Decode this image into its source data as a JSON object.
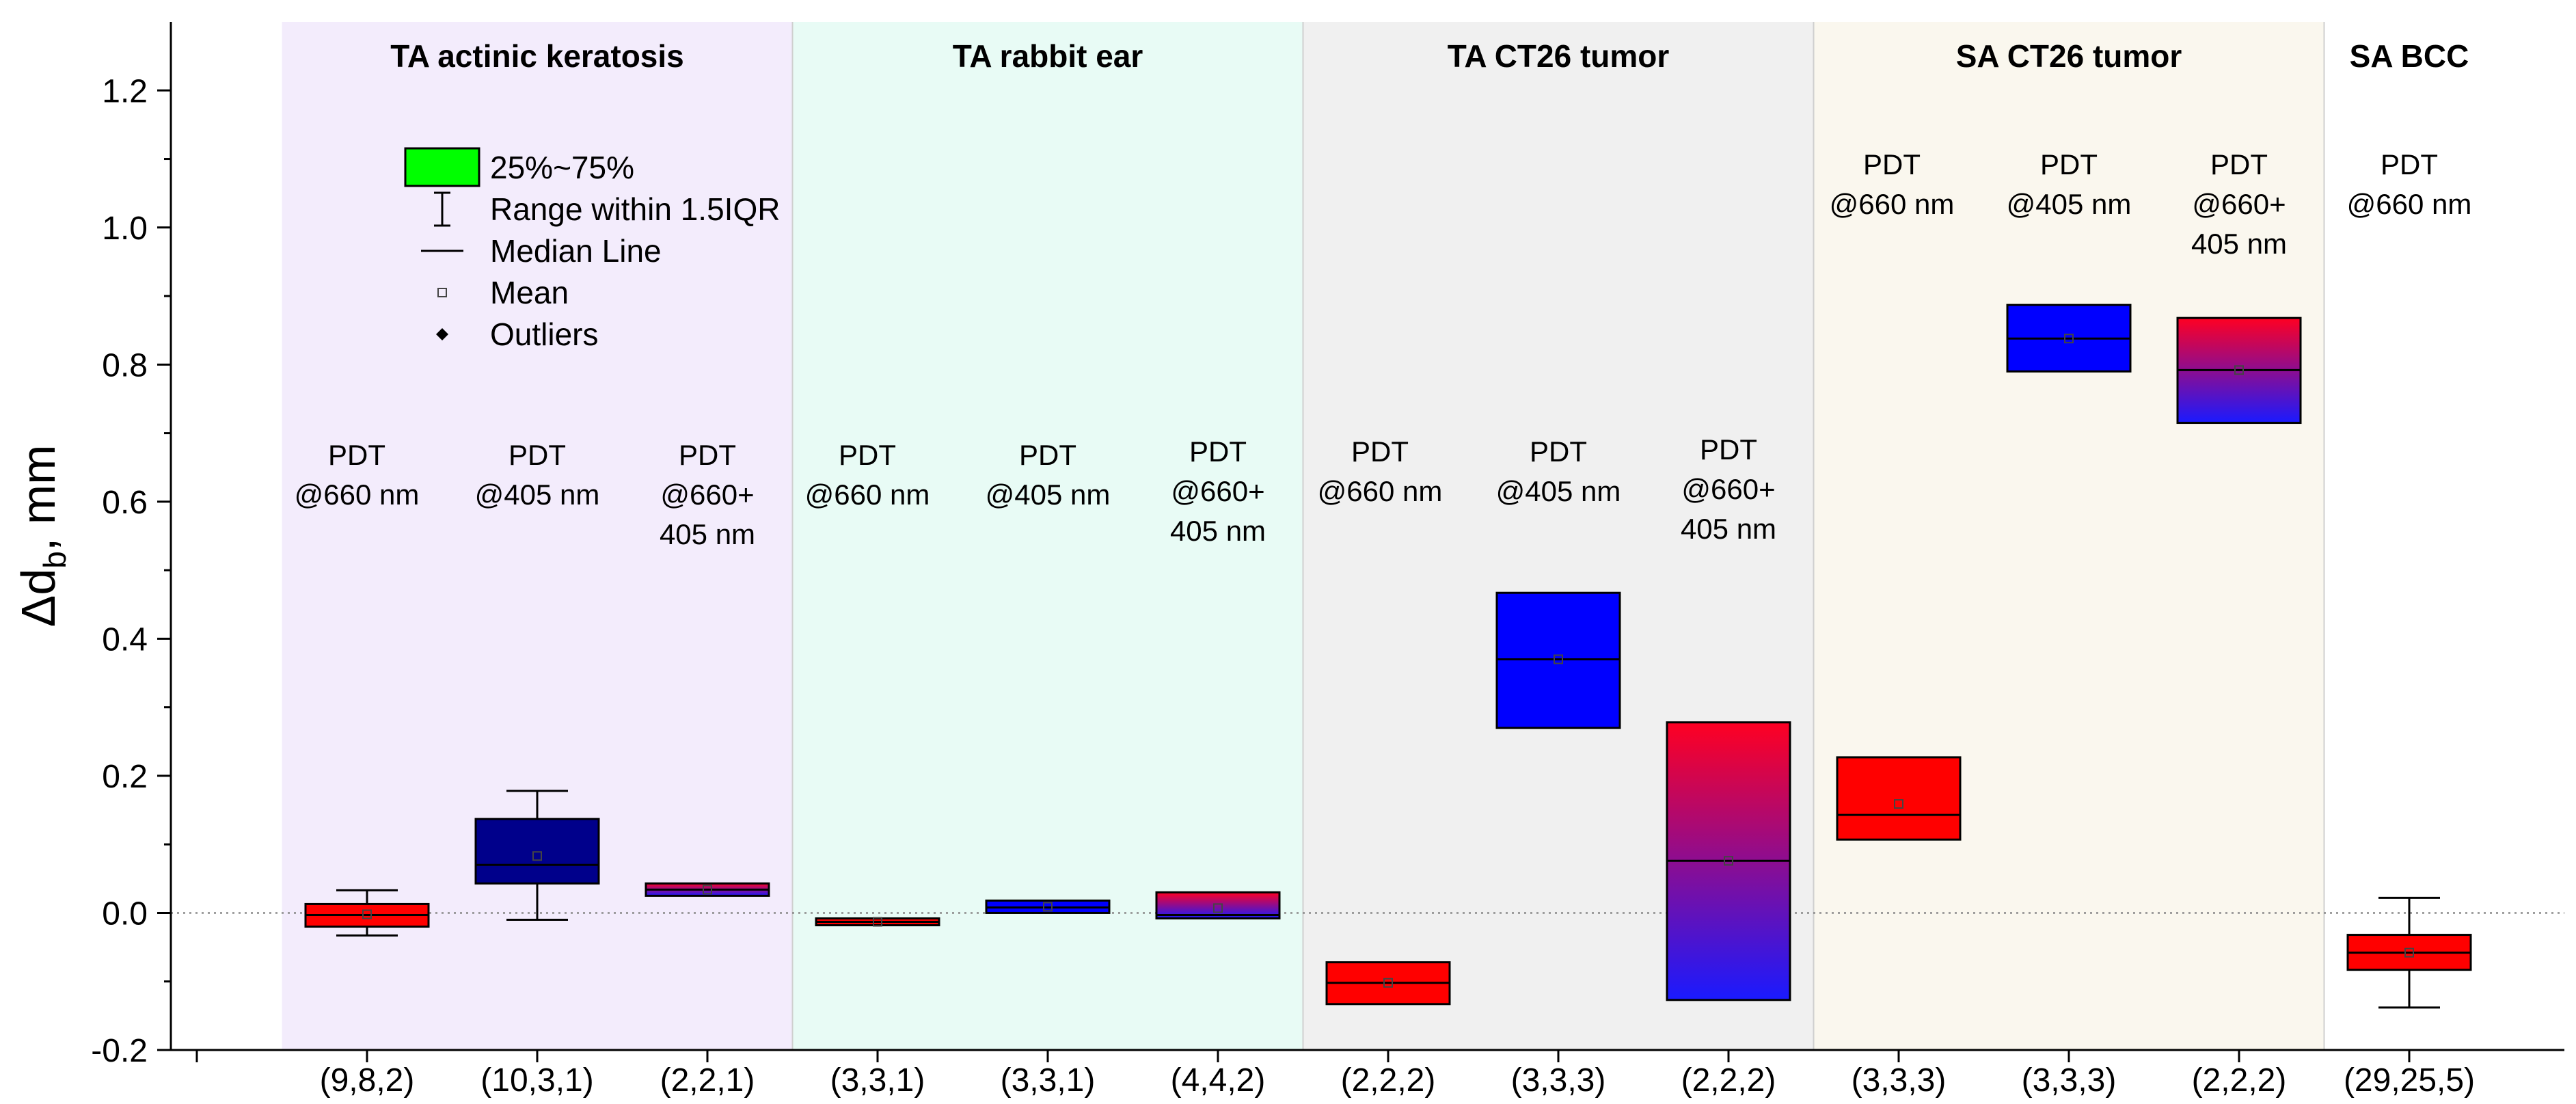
{
  "chart_data": {
    "type": "box",
    "ylabel": "Δd_b, mm",
    "ylabel_main": "Δd",
    "ylabel_sub": "b",
    "ylabel_unit": ", mm",
    "ylim": [
      -0.2,
      1.3
    ],
    "yticks": [
      -0.2,
      0.0,
      0.2,
      0.4,
      0.6,
      0.8,
      1.0,
      1.2
    ],
    "ytick_labels": [
      "-0.2",
      "0.0",
      "0.2",
      "0.4",
      "0.6",
      "0.8",
      "1.0",
      "1.2"
    ],
    "reference_line": 0.0,
    "regions": [
      {
        "title": "TA actinic keratosis",
        "color": "#f3ecfc",
        "start": 0.5,
        "end": 3.5
      },
      {
        "title": "TA rabbit ear",
        "color": "#e8fbf5",
        "start": 3.5,
        "end": 6.5
      },
      {
        "title": "TA CT26 tumor",
        "color": "#f0f0f0",
        "start": 6.5,
        "end": 9.5
      },
      {
        "title": "SA CT26 tumor",
        "color": "#faf7ee",
        "start": 9.5,
        "end": 12.5
      },
      {
        "title": "SA BCC",
        "color": "#ffffff",
        "start": 12.5,
        "end": 13.5
      }
    ],
    "groups": [
      {
        "pos": 1,
        "category": "(9,8,2)",
        "treatment": [
          "PDT",
          "@660 nm"
        ],
        "fill": "red",
        "q1": -0.02,
        "median": -0.003,
        "q3": 0.013,
        "mean": -0.002,
        "whisker_low": -0.033,
        "whisker_high": 0.033
      },
      {
        "pos": 2,
        "category": "(10,3,1)",
        "treatment": [
          "PDT",
          "@405 nm"
        ],
        "fill": "navy",
        "q1": 0.043,
        "median": 0.07,
        "q3": 0.137,
        "mean": 0.083,
        "whisker_low": -0.01,
        "whisker_high": 0.178
      },
      {
        "pos": 3,
        "category": "(2,2,1)",
        "treatment": [
          "PDT",
          "@660+",
          "405 nm"
        ],
        "fill": "gradient",
        "q1": 0.025,
        "median": 0.034,
        "q3": 0.043,
        "mean": 0.034,
        "whisker_low": null,
        "whisker_high": null
      },
      {
        "pos": 4,
        "category": "(3,3,1)",
        "treatment": [
          "PDT",
          "@660 nm"
        ],
        "fill": "red",
        "q1": -0.018,
        "median": -0.013,
        "q3": -0.008,
        "mean": -0.013,
        "whisker_low": null,
        "whisker_high": null
      },
      {
        "pos": 5,
        "category": "(3,3,1)",
        "treatment": [
          "PDT",
          "@405 nm"
        ],
        "fill": "blue",
        "q1": 0.0,
        "median": 0.008,
        "q3": 0.018,
        "mean": 0.009,
        "whisker_low": null,
        "whisker_high": null
      },
      {
        "pos": 6,
        "category": "(4,4,2)",
        "treatment": [
          "PDT",
          "@660+",
          "405 nm"
        ],
        "fill": "gradient",
        "q1": -0.008,
        "median": -0.003,
        "q3": 0.03,
        "mean": 0.007,
        "whisker_low": null,
        "whisker_high": null
      },
      {
        "pos": 7,
        "category": "(2,2,2)",
        "treatment": [
          "PDT",
          "@660 nm"
        ],
        "fill": "red",
        "q1": -0.133,
        "median": -0.102,
        "q3": -0.072,
        "mean": -0.102,
        "whisker_low": null,
        "whisker_high": null
      },
      {
        "pos": 8,
        "category": "(3,3,3)",
        "treatment": [
          "PDT",
          "@405 nm"
        ],
        "fill": "blue",
        "q1": 0.27,
        "median": 0.37,
        "q3": 0.467,
        "mean": 0.37,
        "whisker_low": null,
        "whisker_high": null
      },
      {
        "pos": 9,
        "category": "(2,2,2)",
        "treatment": [
          "PDT",
          "@660+",
          "405 nm"
        ],
        "fill": "gradient",
        "q1": -0.127,
        "median": 0.076,
        "q3": 0.278,
        "mean": 0.076,
        "whisker_low": null,
        "whisker_high": null
      },
      {
        "pos": 10,
        "category": "(3,3,3)",
        "treatment": [
          "PDT",
          "@660 nm"
        ],
        "fill": "red",
        "q1": 0.107,
        "median": 0.143,
        "q3": 0.227,
        "mean": 0.159,
        "whisker_low": null,
        "whisker_high": null
      },
      {
        "pos": 11,
        "category": "(3,3,3)",
        "treatment": [
          "PDT",
          "@405 nm"
        ],
        "fill": "blue",
        "q1": 0.79,
        "median": 0.838,
        "q3": 0.887,
        "mean": 0.838,
        "whisker_low": null,
        "whisker_high": null
      },
      {
        "pos": 12,
        "category": "(2,2,2)",
        "treatment": [
          "PDT",
          "@660+",
          "405 nm"
        ],
        "fill": "gradient",
        "q1": 0.715,
        "median": 0.792,
        "q3": 0.868,
        "mean": 0.792,
        "whisker_low": null,
        "whisker_high": null
      },
      {
        "pos": 13,
        "category": "(29,25,5)",
        "treatment": [
          "PDT",
          "@660 nm"
        ],
        "fill": "red",
        "q1": -0.083,
        "median": -0.058,
        "q3": -0.032,
        "mean": -0.058,
        "whisker_low": -0.138,
        "whisker_high": 0.022
      }
    ],
    "legend": [
      {
        "symbol": "box",
        "label": "25%~75%"
      },
      {
        "symbol": "whisker",
        "label": "Range within 1.5IQR"
      },
      {
        "symbol": "line",
        "label": "Median Line"
      },
      {
        "symbol": "mean",
        "label": "Mean"
      },
      {
        "symbol": "outlier",
        "label": "Outliers"
      }
    ],
    "colors": {
      "red": "#ff0000",
      "blue": "#0000ff",
      "navy": "#00008b",
      "legend_box": "#00ff00",
      "gradient_top": "#ff0022",
      "gradient_bottom": "#1a1aff"
    }
  }
}
